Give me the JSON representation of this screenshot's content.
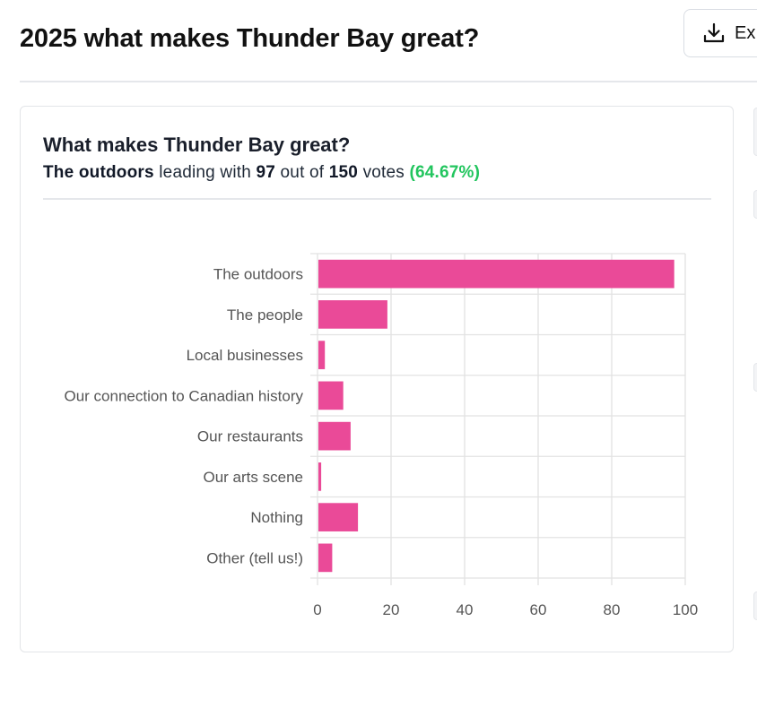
{
  "page": {
    "title": "2025 what makes Thunder Bay great?",
    "export_label": "Ex"
  },
  "card": {
    "title": "What makes Thunder Bay great?",
    "summary": {
      "leader": "The outdoors",
      "leading_with": "leading with",
      "votes": "97",
      "out_of": "out of",
      "total": "150",
      "votes_word": "votes",
      "percent": "(64.67%)"
    }
  },
  "colors": {
    "bar": "#ea4a98",
    "percent": "#22c55e",
    "grid": "#e2e2e2"
  },
  "chart_data": {
    "type": "bar",
    "orientation": "horizontal",
    "categories": [
      "The outdoors",
      "The people",
      "Local businesses",
      "Our connection to Canadian history",
      "Our restaurants",
      "Our arts scene",
      "Nothing",
      "Other (tell us!)"
    ],
    "values": [
      97,
      19,
      2,
      7,
      9,
      1,
      11,
      4
    ],
    "xlim": [
      0,
      100
    ],
    "xticks": [
      0,
      20,
      40,
      60,
      80,
      100
    ],
    "grid": true,
    "legend": "none"
  }
}
